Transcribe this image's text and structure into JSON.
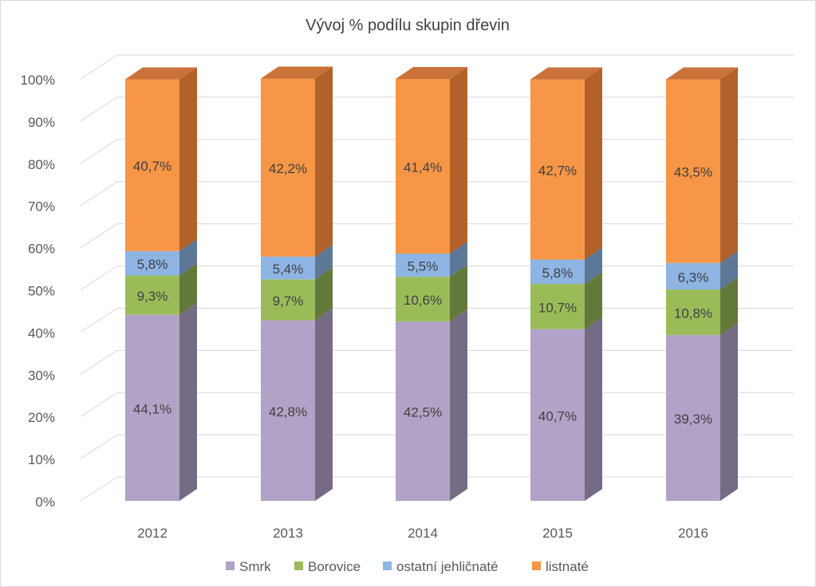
{
  "chart_data": {
    "type": "bar",
    "stacked": true,
    "normalized": true,
    "three_d": true,
    "title": "Vývoj % podílu skupin dřevin",
    "categories": [
      "2012",
      "2013",
      "2014",
      "2015",
      "2016"
    ],
    "series": [
      {
        "name": "Smrk",
        "values": [
          44.1,
          42.8,
          42.5,
          40.7,
          39.3
        ],
        "labels": [
          "44,1%",
          "42,8%",
          "42,5%",
          "40,7%",
          "39,3%"
        ],
        "color": "#b3a2c7",
        "side_color": "#756b85"
      },
      {
        "name": "Borovice",
        "values": [
          9.3,
          9.7,
          10.6,
          10.7,
          10.8
        ],
        "labels": [
          "9,3%",
          "9,7%",
          "10,6%",
          "10,7%",
          "10,8%"
        ],
        "color": "#9bbb59",
        "side_color": "#63793a"
      },
      {
        "name": "ostatní jehličnaté",
        "values": [
          5.8,
          5.4,
          5.5,
          5.8,
          6.3
        ],
        "labels": [
          "5,8%",
          "5,4%",
          "5,5%",
          "5,8%",
          "6,3%"
        ],
        "color": "#8eb4e3",
        "side_color": "#5c7896"
      },
      {
        "name": "listnaté",
        "values": [
          40.7,
          42.2,
          41.4,
          42.7,
          43.5
        ],
        "labels": [
          "40,7%",
          "42,2%",
          "41,4%",
          "42,7%",
          "43,5%"
        ],
        "color": "#f79646",
        "side_color": "#b2612a",
        "top_color": "#c9723a"
      }
    ],
    "y_ticks": [
      "0%",
      "10%",
      "20%",
      "30%",
      "40%",
      "50%",
      "60%",
      "70%",
      "80%",
      "90%",
      "100%"
    ],
    "ylim": [
      0,
      100
    ],
    "grid": true,
    "legend_position": "bottom"
  }
}
